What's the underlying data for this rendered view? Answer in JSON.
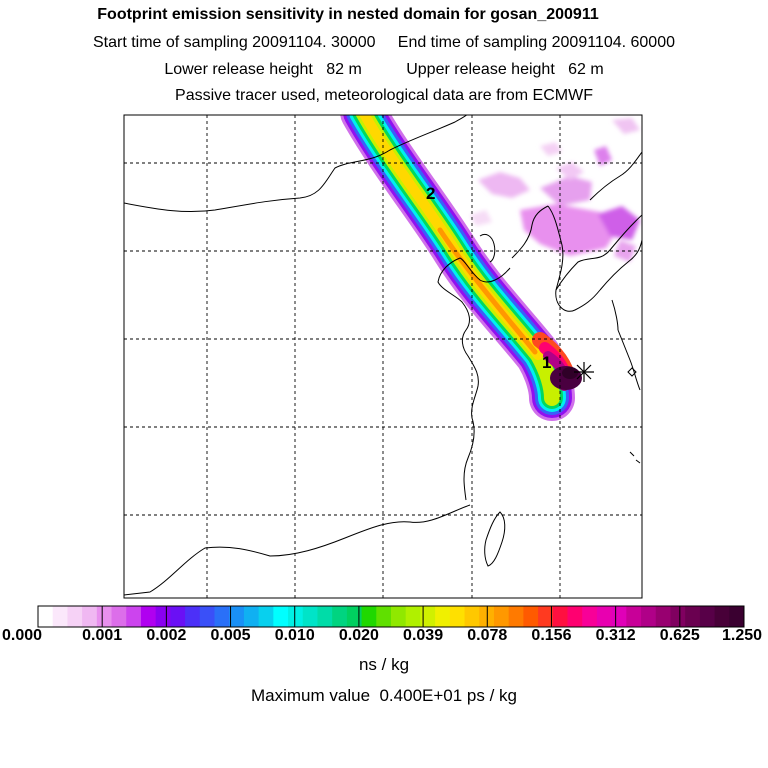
{
  "header": {
    "title": "Footprint emission sensitivity in nested domain for gosan_200911",
    "line2": "Start time of sampling 20091104. 30000     End time of sampling 20091104. 60000",
    "line3": "Lower release height   82 m          Upper release height   62 m",
    "line4": "Passive tracer used, meteorological data are from ECMWF"
  },
  "map": {
    "plume_labels": [
      "1",
      "2"
    ],
    "receptor_marker": "star"
  },
  "colorbar": {
    "tick_labels": [
      "0.000",
      "0.001",
      "0.002",
      "0.005",
      "0.010",
      "0.020",
      "0.039",
      "0.078",
      "0.156",
      "0.312",
      "0.625",
      "1.250"
    ],
    "colors": [
      "#ffffff",
      "#fbe8fb",
      "#f6d2f6",
      "#f0b8f2",
      "#e890ee",
      "#dc6eea",
      "#cc44ee",
      "#b000f0",
      "#8a00f0",
      "#6a10f5",
      "#4c30f8",
      "#3a50f8",
      "#2a70f8",
      "#1a90f6",
      "#10b0f2",
      "#08d0ee",
      "#00ffff",
      "#00f0e4",
      "#00e4c8",
      "#00dca8",
      "#00d480",
      "#00d060",
      "#20d800",
      "#60e000",
      "#90e800",
      "#b0f000",
      "#d0f000",
      "#f0f000",
      "#ffe000",
      "#ffc800",
      "#ffb000",
      "#ff9800",
      "#ff7a00",
      "#ff5a00",
      "#ff3a20",
      "#ff1040",
      "#ff0070",
      "#f80098",
      "#e800b0",
      "#e000b8",
      "#c80098",
      "#b00088",
      "#980070",
      "#800060",
      "#6a0050",
      "#580048",
      "#480038",
      "#3a0030"
    ],
    "units": "ns / kg",
    "max_value": "Maximum value  0.400E+01 ps / kg"
  }
}
